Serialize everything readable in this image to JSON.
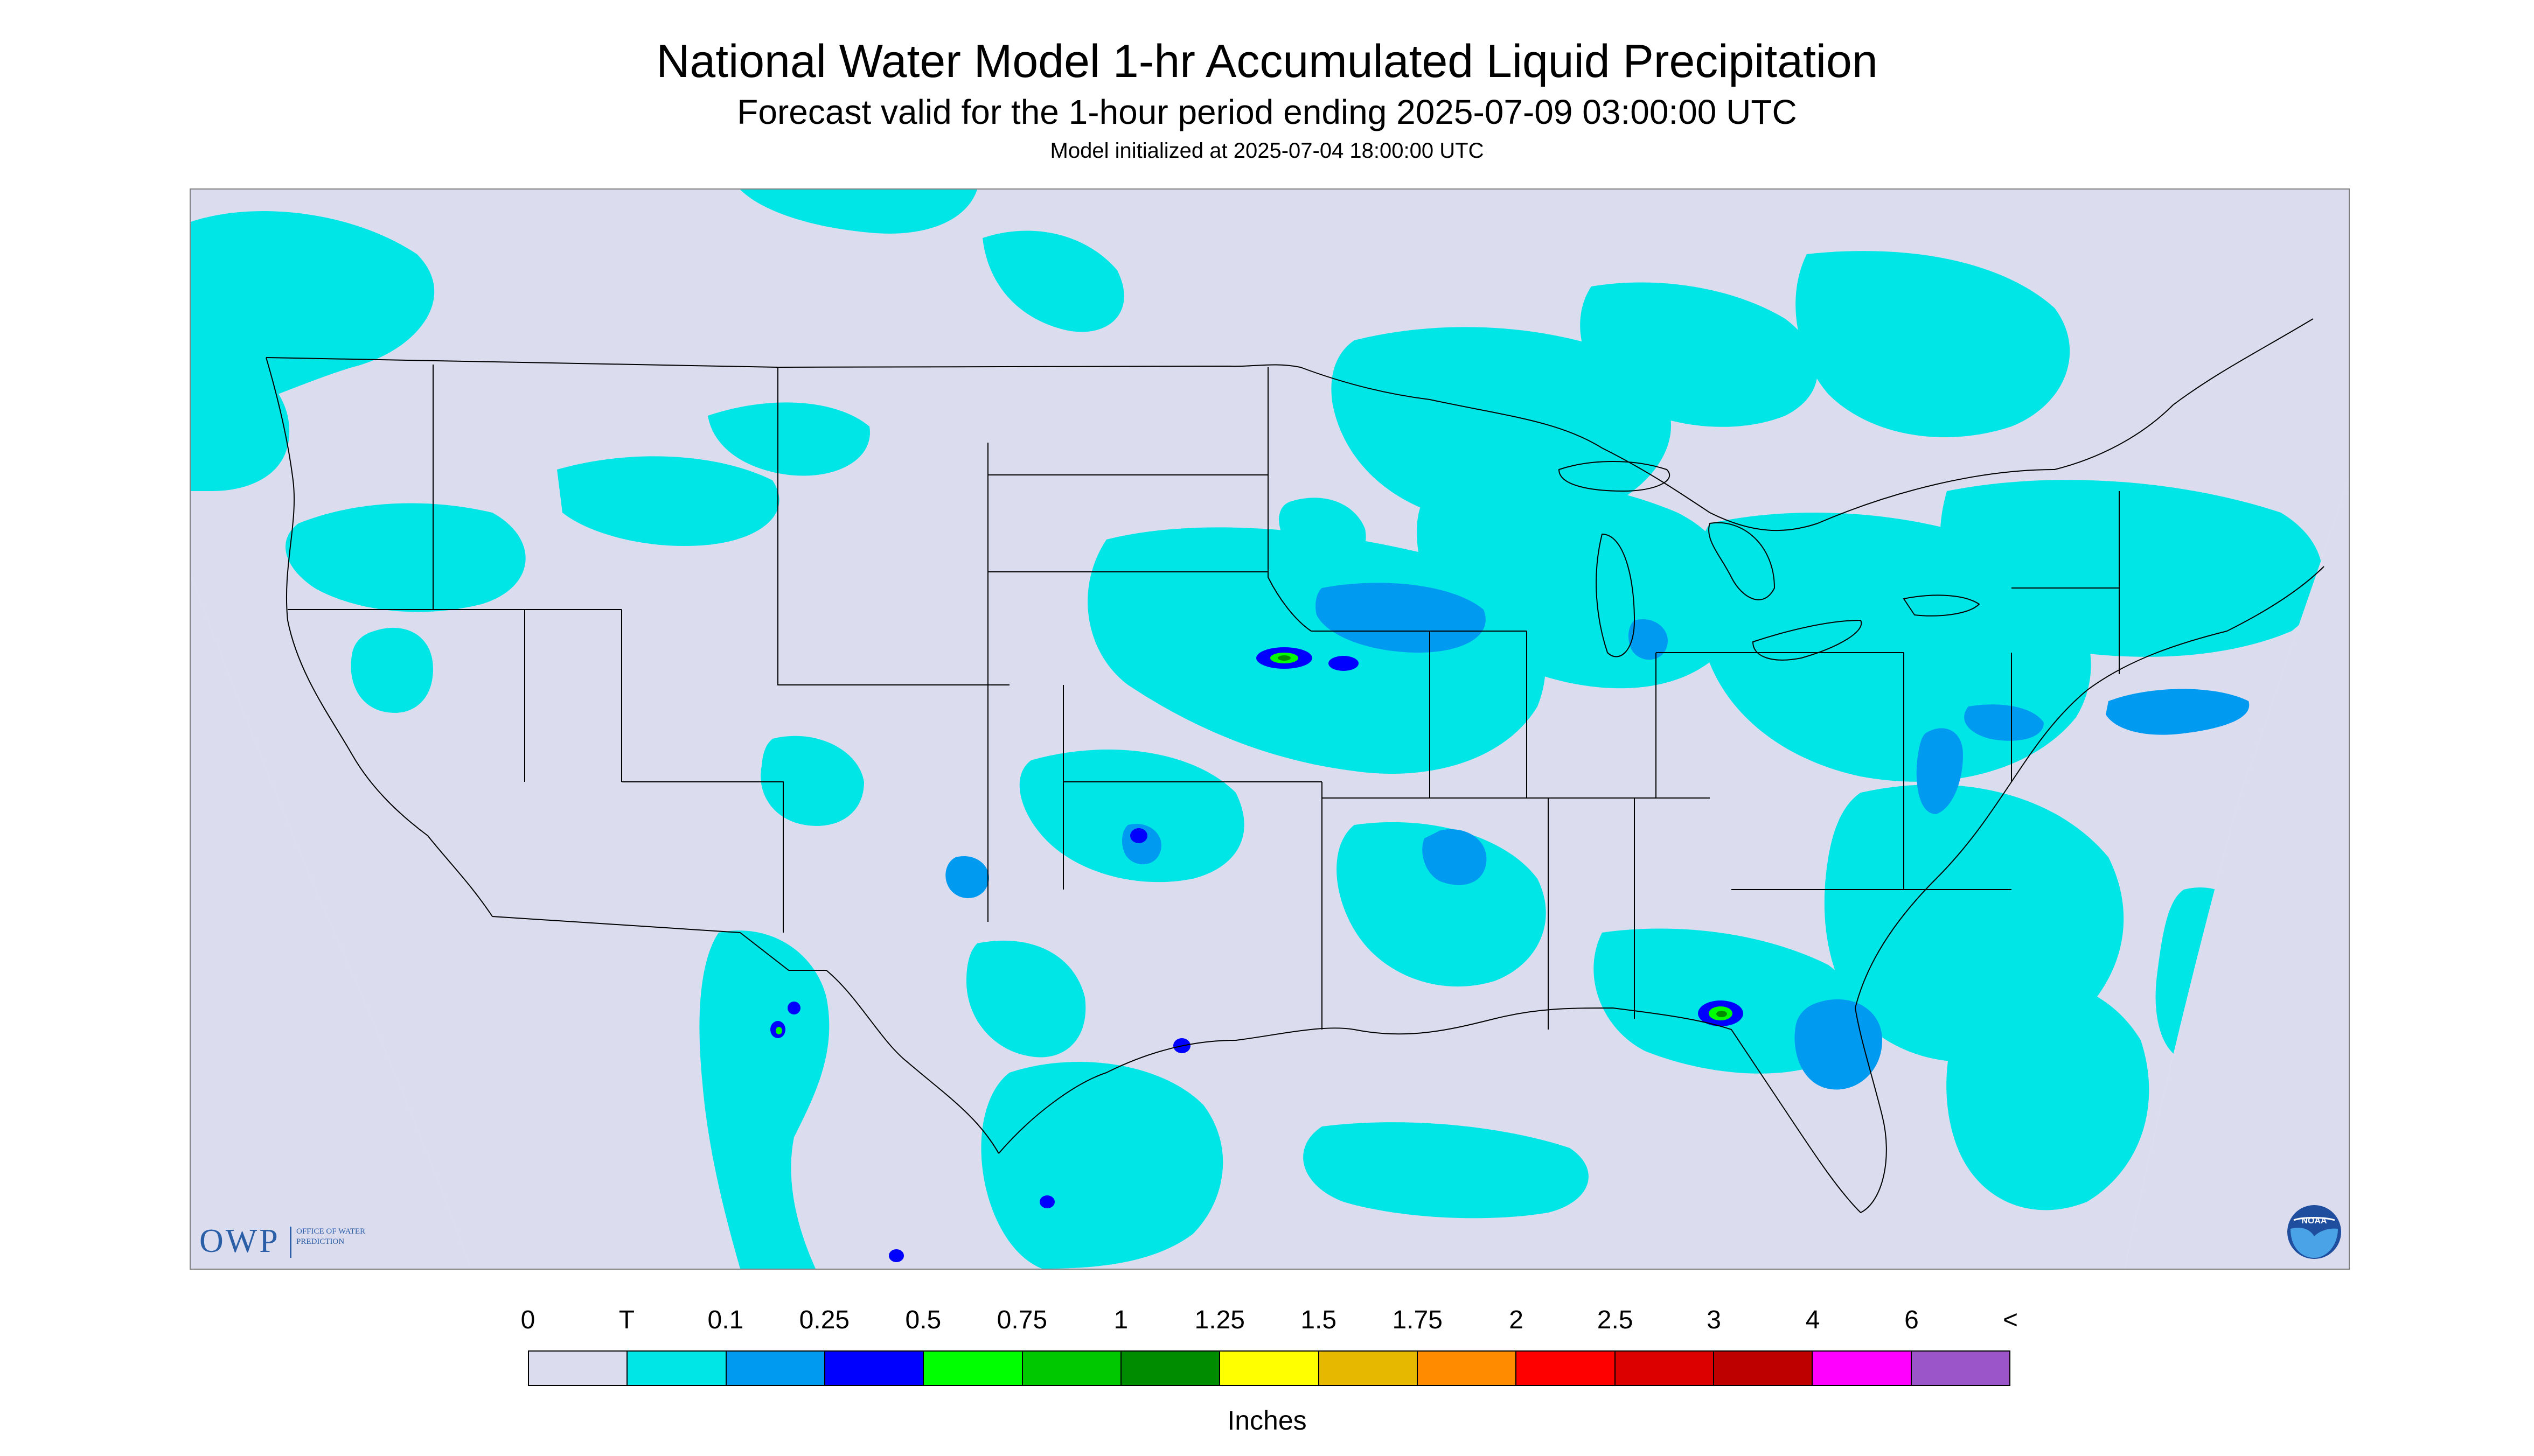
{
  "title": "National Water Model 1-hr Accumulated Liquid Precipitation",
  "subtitle": "Forecast valid for the 1-hour period ending 2025-07-09 03:00:00 UTC",
  "init_line": "Model initialized at 2025-07-04 18:00:00 UTC",
  "logos": {
    "owp_abbrev": "OWP",
    "owp_name": "Office of Water Prediction",
    "noaa": "NOAA"
  },
  "colors": {
    "nodata": "#dcdcef",
    "background": "#ffffff",
    "boundary": "#000000"
  },
  "legend": {
    "units": "Inches",
    "labels": [
      "0",
      "T",
      "0.1",
      "0.25",
      "0.5",
      "0.75",
      "1",
      "1.25",
      "1.5",
      "1.75",
      "2",
      "2.5",
      "3",
      "4",
      "6",
      "<"
    ],
    "bins": [
      {
        "color": "#dcdcef"
      },
      {
        "color": "#00e6e6"
      },
      {
        "color": "#009bf0"
      },
      {
        "color": "#0000ff"
      },
      {
        "color": "#00ff00"
      },
      {
        "color": "#00c800"
      },
      {
        "color": "#008c00"
      },
      {
        "color": "#ffff00"
      },
      {
        "color": "#e6b900"
      },
      {
        "color": "#ff8c00"
      },
      {
        "color": "#ff0000"
      },
      {
        "color": "#dc0000"
      },
      {
        "color": "#be0000"
      },
      {
        "color": "#ff00ff"
      },
      {
        "color": "#9b55c8"
      }
    ]
  }
}
